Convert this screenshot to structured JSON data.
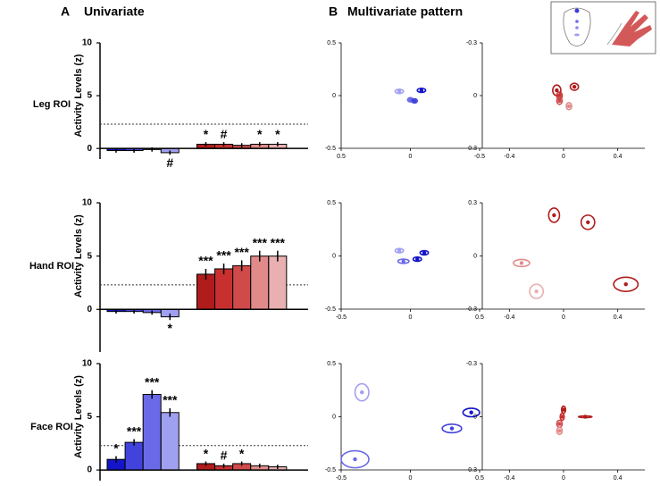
{
  "figure": {
    "panel_a": "A",
    "title_a": "Univariate",
    "panel_b": "B",
    "title_b": "Multivariate pattern"
  },
  "chart_data": [
    {
      "type": "bar",
      "title": "Leg ROI",
      "ylabel": "Activity Levels (z)",
      "ylim": [
        -1,
        10
      ],
      "yticks": [
        0,
        5,
        10
      ],
      "reference_line": 2.3,
      "series": [
        {
          "colors": [
            "#1414c8",
            "#4242dc",
            "#6a6ae8",
            "#a0a0f0"
          ],
          "values": [
            -0.2,
            -0.2,
            -0.1,
            -0.4
          ],
          "errors": [
            0.2,
            0.2,
            0.2,
            0.2
          ],
          "labels": [
            null,
            null,
            null,
            "#"
          ]
        },
        {
          "colors": [
            "#b01c1c",
            "#c83030",
            "#d04a4a",
            "#e08a8a",
            "#e8b0b0"
          ],
          "values": [
            0.4,
            0.4,
            0.3,
            0.4,
            0.4
          ],
          "errors": [
            0.2,
            0.2,
            0.2,
            0.2,
            0.2
          ],
          "labels": [
            "*",
            "#",
            null,
            "*",
            "*"
          ]
        }
      ]
    },
    {
      "type": "bar",
      "title": "Hand ROI",
      "ylabel": "Activity Levels (z)",
      "ylim": [
        -4,
        10
      ],
      "yticks": [
        0,
        5,
        10
      ],
      "reference_line": 2.3,
      "series": [
        {
          "colors": [
            "#1414c8",
            "#4242dc",
            "#6a6ae8",
            "#a0a0f0"
          ],
          "values": [
            -0.2,
            -0.2,
            -0.3,
            -0.7
          ],
          "errors": [
            0.2,
            0.2,
            0.2,
            0.3
          ],
          "labels": [
            null,
            null,
            null,
            "*"
          ]
        },
        {
          "colors": [
            "#b01c1c",
            "#c83030",
            "#d04a4a",
            "#e08a8a",
            "#e8b0b0"
          ],
          "values": [
            3.3,
            3.8,
            4.1,
            5.0,
            5.0
          ],
          "errors": [
            0.5,
            0.5,
            0.5,
            0.5,
            0.5
          ],
          "labels": [
            "***",
            "***",
            "***",
            "***",
            "***"
          ]
        }
      ]
    },
    {
      "type": "bar",
      "title": "Face ROI",
      "ylabel": "Activity Levels (z)",
      "ylim": [
        -1,
        10
      ],
      "yticks": [
        0,
        5,
        10
      ],
      "reference_line": 2.3,
      "series": [
        {
          "colors": [
            "#1414c8",
            "#4242dc",
            "#6a6ae8",
            "#a0a0f0"
          ],
          "values": [
            1.0,
            2.6,
            7.1,
            5.4
          ],
          "errors": [
            0.3,
            0.3,
            0.4,
            0.4
          ],
          "labels": [
            "*",
            "***",
            "***",
            "***"
          ]
        },
        {
          "colors": [
            "#b01c1c",
            "#c83030",
            "#d04a4a",
            "#e08a8a",
            "#e8b0b0"
          ],
          "values": [
            0.6,
            0.4,
            0.6,
            0.4,
            0.3
          ],
          "errors": [
            0.2,
            0.2,
            0.2,
            0.2,
            0.2
          ],
          "labels": [
            "*",
            "#",
            "*",
            null,
            null
          ]
        }
      ]
    },
    {
      "type": "scatter",
      "xlim": [
        0.5,
        -0.5
      ],
      "ylim": [
        -0.5,
        0.5
      ],
      "xticks": [
        0.5,
        0,
        -0.5
      ],
      "yticks": [
        -0.5,
        0,
        0.5
      ],
      "series": [
        {
          "colors": [
            "#a0a0f0",
            "#6a6ae8",
            "#4242dc",
            "#1414c8"
          ],
          "x": [
            0.08,
            0,
            -0.03,
            -0.08
          ],
          "values": [
            0.04,
            -0.04,
            -0.05,
            0.05
          ],
          "spread_x": [
            0.03,
            0.02,
            0.02,
            0.03
          ],
          "spread_y": [
            0.02,
            0.02,
            0.02,
            0.02
          ]
        }
      ]
    },
    {
      "type": "scatter",
      "xlim": [
        -0.6,
        0.6
      ],
      "ylim": [
        0.3,
        -0.3
      ],
      "xticks": [
        -0.4,
        0,
        0.4
      ],
      "yticks": [
        -0.3,
        0,
        0.3
      ],
      "series": [
        {
          "colors": [
            "#b01c1c",
            "#c83030",
            "#d04a4a",
            "#b01c1c",
            "#e08a8a"
          ],
          "x": [
            -0.05,
            -0.03,
            -0.03,
            0.08,
            0.04
          ],
          "values": [
            -0.03,
            0,
            0.03,
            -0.05,
            0.06
          ],
          "spread_x": [
            0.03,
            0.02,
            0.02,
            0.03,
            0.02
          ],
          "spread_y": [
            0.03,
            0.02,
            0.02,
            0.02,
            0.02
          ]
        }
      ]
    },
    {
      "type": "scatter",
      "xlim": [
        -0.5,
        0.5
      ],
      "ylim": [
        -0.5,
        0.5
      ],
      "xticks": [
        -0.5,
        0,
        0.5
      ],
      "yticks": [
        -0.5,
        0,
        0.5
      ],
      "series": [
        {
          "colors": [
            "#a0a0f0",
            "#6a6ae8",
            "#1414c8",
            "#1414c8"
          ],
          "x": [
            -0.08,
            -0.05,
            0.05,
            0.1
          ],
          "values": [
            0.05,
            -0.05,
            -0.03,
            0.03
          ],
          "spread_x": [
            0.03,
            0.04,
            0.03,
            0.03
          ],
          "spread_y": [
            0.02,
            0.02,
            0.02,
            0.02
          ]
        }
      ]
    },
    {
      "type": "scatter",
      "xlim": [
        -0.6,
        0.6
      ],
      "ylim": [
        -0.3,
        0.3
      ],
      "xticks": [
        -0.4,
        0,
        0.4
      ],
      "yticks": [
        -0.3,
        0,
        0.3
      ],
      "series": [
        {
          "colors": [
            "#b01c1c",
            "#b01c1c",
            "#e08a8a",
            "#e8b0b0",
            "#b01c1c"
          ],
          "x": [
            -0.07,
            0.18,
            -0.31,
            -0.2,
            0.46
          ],
          "values": [
            0.23,
            0.19,
            -0.04,
            -0.2,
            -0.16
          ],
          "spread_x": [
            0.04,
            0.05,
            0.06,
            0.05,
            0.09
          ],
          "spread_y": [
            0.04,
            0.04,
            0.02,
            0.04,
            0.04
          ]
        }
      ]
    },
    {
      "type": "scatter",
      "xlim": [
        -0.5,
        0.5
      ],
      "ylim": [
        -0.5,
        0.5
      ],
      "xticks": [
        -0.5,
        0,
        0.5
      ],
      "yticks": [
        -0.5,
        0,
        0.5
      ],
      "series": [
        {
          "colors": [
            "#a0a0f0",
            "#6a6ae8",
            "#4242dc",
            "#1414c8"
          ],
          "x": [
            -0.35,
            -0.4,
            0.3,
            0.44
          ],
          "values": [
            0.23,
            -0.4,
            -0.11,
            0.04
          ],
          "spread_x": [
            0.05,
            0.1,
            0.07,
            0.06
          ],
          "spread_y": [
            0.08,
            0.08,
            0.04,
            0.04
          ]
        }
      ]
    },
    {
      "type": "scatter",
      "xlim": [
        -0.6,
        0.6
      ],
      "ylim": [
        0.3,
        -0.3
      ],
      "xticks": [
        -0.4,
        0,
        0.4
      ],
      "yticks": [
        -0.3,
        0,
        0.3
      ],
      "series": [
        {
          "colors": [
            "#b01c1c",
            "#c83030",
            "#d04a4a",
            "#e08a8a",
            "#b01c1c"
          ],
          "x": [
            0,
            -0.01,
            -0.03,
            -0.03,
            0.16
          ],
          "values": [
            -0.04,
            0,
            0.04,
            0.08,
            0
          ],
          "spread_x": [
            0.015,
            0.015,
            0.02,
            0.02,
            0.05
          ],
          "spread_y": [
            0.02,
            0.02,
            0.02,
            0.02,
            0.005
          ]
        }
      ]
    }
  ]
}
